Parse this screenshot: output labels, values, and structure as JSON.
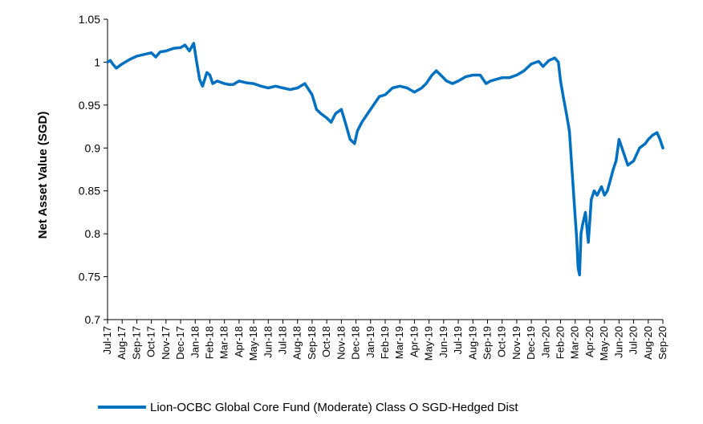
{
  "chart_data": {
    "type": "line",
    "title": "",
    "xlabel": "",
    "ylabel": "Net Asset Value (SGD)",
    "ylim": [
      0.7,
      1.05
    ],
    "yticks": [
      "0.7",
      "0.75",
      "0.8",
      "0.85",
      "0.9",
      "0.95",
      "1",
      "1.05"
    ],
    "grid": false,
    "legend_position": "bottom",
    "categories": [
      "Jul-17",
      "Aug-17",
      "Sep-17",
      "Oct-17",
      "Nov-17",
      "Dec-17",
      "Jan-18",
      "Feb-18",
      "Mar-18",
      "Apr-18",
      "May-18",
      "Jun-18",
      "Jul-18",
      "Aug-18",
      "Sep-18",
      "Oct-18",
      "Nov-18",
      "Dec-18",
      "Jan-19",
      "Feb-19",
      "Mar-19",
      "Apr-19",
      "May-19",
      "Jun-19",
      "Jul-19",
      "Aug-19",
      "Sep-19",
      "Oct-19",
      "Nov-19",
      "Dec-19",
      "Jan-20",
      "Feb-20",
      "Mar-20",
      "Apr-20",
      "May-20",
      "Jun-20",
      "Jul-20",
      "Aug-20",
      "Sep-20"
    ],
    "series": [
      {
        "name": "Lion-OCBC Global Core Fund (Moderate) Class O SGD-Hedged Dist",
        "color": "#0070C0",
        "x": [
          0,
          0.2,
          0.35,
          0.6,
          1.0,
          1.5,
          2.0,
          2.5,
          3.0,
          3.3,
          3.6,
          4.0,
          4.5,
          5.0,
          5.3,
          5.6,
          5.9,
          6.1,
          6.3,
          6.5,
          6.8,
          7.0,
          7.2,
          7.5,
          8.0,
          8.3,
          8.6,
          9.0,
          9.5,
          10.0,
          10.5,
          11.0,
          11.5,
          12.0,
          12.5,
          13.0,
          13.5,
          14.0,
          14.3,
          14.6,
          15.0,
          15.3,
          15.6,
          16.0,
          16.3,
          16.6,
          16.9,
          17.1,
          17.4,
          17.8,
          18.2,
          18.6,
          19.0,
          19.5,
          20.0,
          20.5,
          21.0,
          21.5,
          21.8,
          22.2,
          22.5,
          22.8,
          23.2,
          23.6,
          24.0,
          24.5,
          25.0,
          25.5,
          25.9,
          26.2,
          26.6,
          27.0,
          27.5,
          28.0,
          28.5,
          29.0,
          29.5,
          29.8,
          30.2,
          30.6,
          30.85,
          31.0,
          31.2,
          31.4,
          31.6,
          31.8,
          32.0,
          32.1,
          32.2,
          32.3,
          32.4,
          32.5,
          32.7,
          32.9,
          33.1,
          33.3,
          33.5,
          33.8,
          34.0,
          34.2,
          34.4,
          34.6,
          34.8,
          35.0,
          35.3,
          35.6,
          36.0,
          36.4,
          36.8,
          37.0,
          37.3,
          37.6,
          37.8,
          38.0
        ],
        "values": [
          1.0,
          1.002,
          0.998,
          0.993,
          0.998,
          1.003,
          1.007,
          1.009,
          1.011,
          1.006,
          1.012,
          1.013,
          1.016,
          1.017,
          1.02,
          1.013,
          1.022,
          1.0,
          0.98,
          0.972,
          0.988,
          0.985,
          0.975,
          0.978,
          0.975,
          0.974,
          0.974,
          0.978,
          0.976,
          0.975,
          0.972,
          0.97,
          0.972,
          0.97,
          0.968,
          0.97,
          0.975,
          0.962,
          0.945,
          0.94,
          0.935,
          0.93,
          0.94,
          0.945,
          0.928,
          0.91,
          0.905,
          0.92,
          0.93,
          0.94,
          0.95,
          0.96,
          0.962,
          0.97,
          0.972,
          0.97,
          0.965,
          0.97,
          0.975,
          0.985,
          0.99,
          0.985,
          0.978,
          0.975,
          0.978,
          0.983,
          0.985,
          0.985,
          0.975,
          0.978,
          0.98,
          0.982,
          0.982,
          0.985,
          0.99,
          0.998,
          1.001,
          0.995,
          1.002,
          1.005,
          1.0,
          0.978,
          0.958,
          0.94,
          0.92,
          0.87,
          0.82,
          0.795,
          0.76,
          0.752,
          0.8,
          0.81,
          0.825,
          0.79,
          0.84,
          0.85,
          0.845,
          0.855,
          0.845,
          0.85,
          0.862,
          0.875,
          0.885,
          0.91,
          0.895,
          0.88,
          0.885,
          0.9,
          0.905,
          0.91,
          0.915,
          0.918,
          0.91,
          0.9
        ]
      }
    ]
  }
}
